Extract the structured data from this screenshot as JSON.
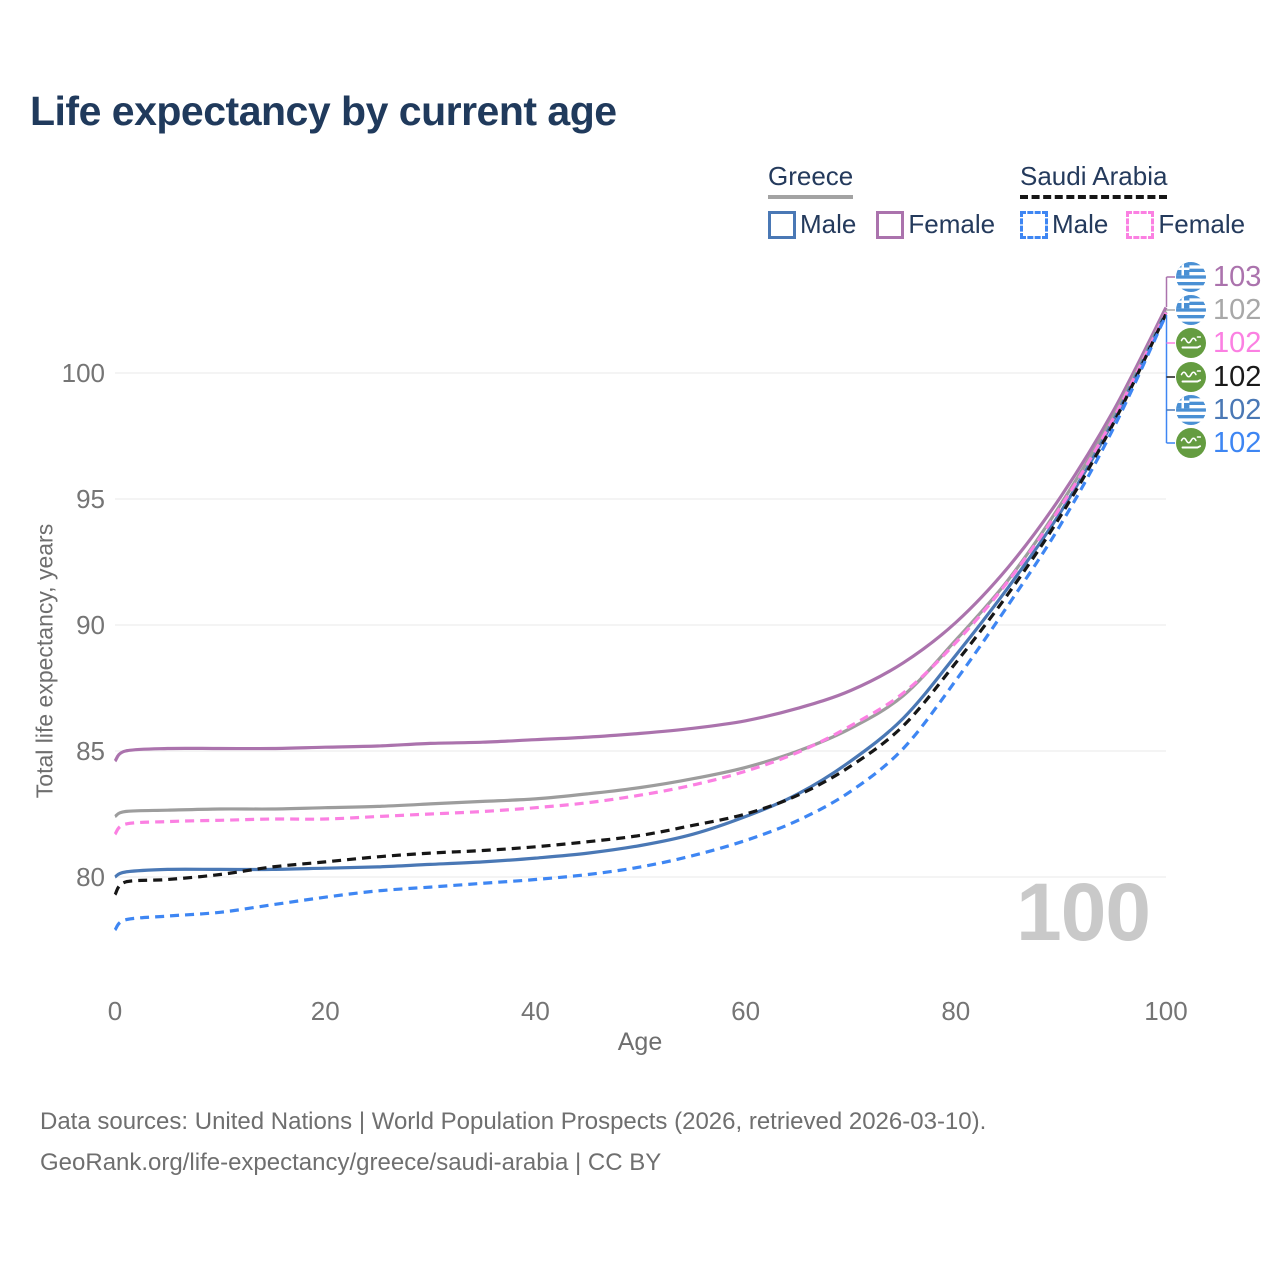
{
  "title": "Life expectancy by current age",
  "legend": {
    "greece": {
      "label": "Greece",
      "male": "Male",
      "female": "Female"
    },
    "saudi": {
      "label": "Saudi Arabia",
      "male": "Male",
      "female": "Female"
    }
  },
  "watermark": "100",
  "footer": {
    "line1": "Data sources: United Nations | World Population Prospects (2026, retrieved 2026-03-10).",
    "line2": "GeoRank.org/life-expectancy/greece/saudi-arabia | CC BY"
  },
  "chart_data": {
    "type": "line",
    "title": "Life expectancy by current age",
    "xlabel": "Age",
    "ylabel": "Total life expectancy, years",
    "xlim": [
      0,
      100
    ],
    "ylim": [
      77,
      103.5
    ],
    "x_ticks": [
      0,
      20,
      40,
      60,
      80,
      100
    ],
    "y_ticks": [
      80,
      85,
      90,
      95,
      100
    ],
    "grid": "horizontal",
    "legend_position": "top-right",
    "x": [
      0,
      1,
      5,
      10,
      15,
      20,
      25,
      30,
      35,
      40,
      45,
      50,
      55,
      60,
      65,
      70,
      75,
      80,
      85,
      90,
      95,
      100
    ],
    "series": [
      {
        "name": "Greece Female",
        "country": "Greece",
        "sex": "Female",
        "style": "solid",
        "color": "#ab73ad",
        "values": [
          84.6,
          85.0,
          85.1,
          85.1,
          85.1,
          85.15,
          85.2,
          85.3,
          85.35,
          85.45,
          85.55,
          85.7,
          85.9,
          86.2,
          86.7,
          87.4,
          88.5,
          90.1,
          92.3,
          95.1,
          98.5,
          102.6
        ]
      },
      {
        "name": "Greece",
        "country": "Greece",
        "sex": "Both",
        "style": "solid",
        "color": "#9d9d9d",
        "values": [
          82.4,
          82.6,
          82.65,
          82.7,
          82.7,
          82.75,
          82.8,
          82.9,
          83.0,
          83.1,
          83.3,
          83.55,
          83.9,
          84.35,
          85.0,
          85.9,
          87.2,
          89.4,
          91.8,
          94.8,
          98.3,
          102.45
        ]
      },
      {
        "name": "Greece Male",
        "country": "Greece",
        "sex": "Male",
        "style": "solid",
        "color": "#4a78b5",
        "values": [
          80.0,
          80.2,
          80.3,
          80.3,
          80.3,
          80.35,
          80.4,
          80.5,
          80.6,
          80.75,
          80.95,
          81.25,
          81.7,
          82.4,
          83.3,
          84.6,
          86.3,
          88.8,
          91.5,
          94.5,
          98.1,
          102.4
        ]
      },
      {
        "name": "Saudi Arabia Female",
        "country": "Saudi Arabia",
        "sex": "Female",
        "style": "dashed",
        "color": "#fb80e2",
        "values": [
          81.7,
          82.1,
          82.2,
          82.25,
          82.3,
          82.3,
          82.4,
          82.5,
          82.6,
          82.75,
          82.95,
          83.25,
          83.65,
          84.2,
          84.95,
          86.0,
          87.3,
          89.3,
          91.75,
          94.7,
          98.2,
          102.4
        ]
      },
      {
        "name": "Saudi Arabia",
        "country": "Saudi Arabia",
        "sex": "Both",
        "style": "dashed",
        "color": "#161616",
        "values": [
          79.3,
          79.8,
          79.9,
          80.1,
          80.4,
          80.6,
          80.8,
          80.95,
          81.05,
          81.2,
          81.4,
          81.65,
          82.05,
          82.5,
          83.25,
          84.4,
          86.0,
          88.5,
          91.25,
          94.35,
          98.0,
          102.35
        ]
      },
      {
        "name": "Saudi Arabia Male",
        "country": "Saudi Arabia",
        "sex": "Male",
        "style": "dashed",
        "color": "#3e86f3",
        "values": [
          77.9,
          78.3,
          78.45,
          78.6,
          78.9,
          79.2,
          79.45,
          79.6,
          79.75,
          79.9,
          80.1,
          80.4,
          80.85,
          81.45,
          82.25,
          83.4,
          85.1,
          87.8,
          90.8,
          94.0,
          97.8,
          102.3
        ]
      }
    ],
    "end_labels": [
      {
        "value": "103",
        "flag": "greece",
        "color": "#ab73ad"
      },
      {
        "value": "102",
        "flag": "greece",
        "color": "#a8a8a8"
      },
      {
        "value": "102",
        "flag": "saudi",
        "color": "#fb80e2"
      },
      {
        "value": "102",
        "flag": "saudi",
        "color": "#1a1a1a"
      },
      {
        "value": "102",
        "flag": "greece",
        "color": "#4a78b5"
      },
      {
        "value": "102",
        "flag": "saudi",
        "color": "#3e86f3"
      }
    ]
  }
}
